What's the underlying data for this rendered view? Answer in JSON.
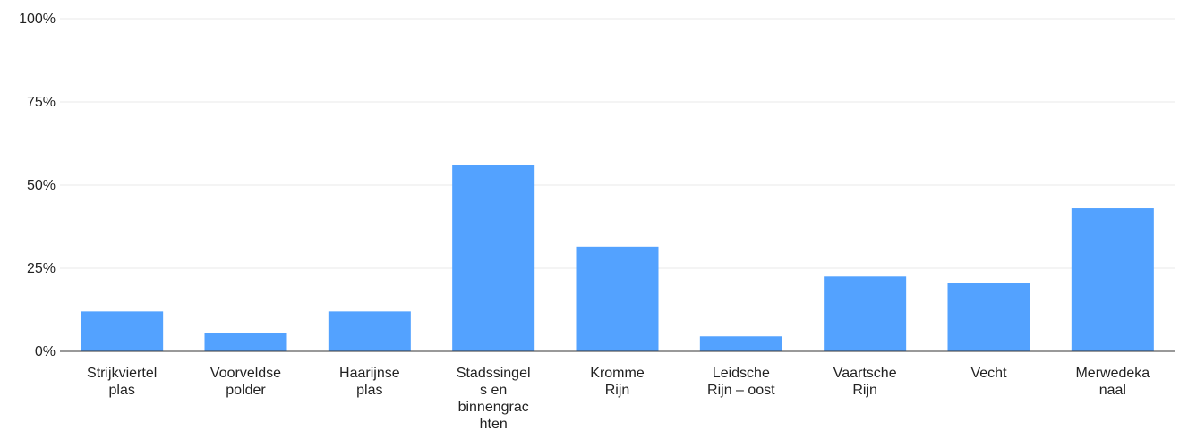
{
  "chart_data": {
    "type": "bar",
    "categories": [
      [
        "Strijkviertel",
        "plas"
      ],
      [
        "Voorveldse",
        "polder"
      ],
      [
        "Haarijnse",
        "plas"
      ],
      [
        "Stadssingel",
        "s en",
        "binnengrac",
        "hten"
      ],
      [
        "Kromme",
        "Rijn"
      ],
      [
        "Leidsche",
        "Rijn – oost"
      ],
      [
        "Vaartsche",
        "Rijn"
      ],
      [
        "Vecht"
      ],
      [
        "Merwedeka",
        "naal"
      ]
    ],
    "values": [
      12,
      5.5,
      12,
      56,
      31.5,
      4.5,
      22.5,
      20.5,
      43
    ],
    "ylim": [
      0,
      100
    ],
    "yticks": [
      "0%",
      "25%",
      "50%",
      "75%",
      "100%"
    ],
    "grid": true,
    "bar_color": "#53a2ff"
  }
}
